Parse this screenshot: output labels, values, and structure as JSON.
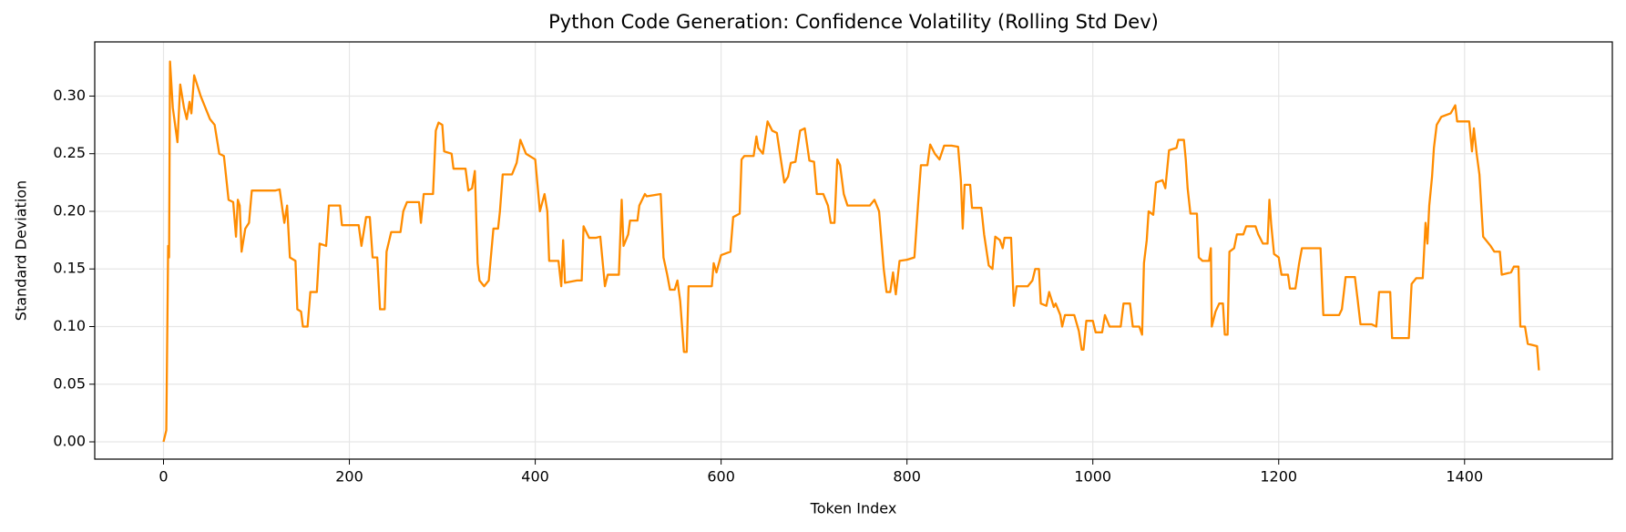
{
  "chart_data": {
    "type": "line",
    "title": "Python Code Generation: Confidence Volatility (Rolling Std Dev)",
    "x_label": "Token Index",
    "y_label": "Standard Deviation",
    "color": "#ff8c00",
    "grid": true,
    "xlim": [
      -74,
      1559
    ],
    "ylim": [
      -0.015,
      0.347
    ],
    "xticks": [
      0,
      200,
      400,
      600,
      800,
      1000,
      1200,
      1400
    ],
    "yticks": [
      {
        "value": 0,
        "label": "0.00"
      },
      0.05,
      {
        "value": 0.1,
        "label": "0.10"
      },
      0.15,
      {
        "value": 0.2,
        "label": "0.20"
      },
      0.25,
      {
        "value": 0.3,
        "label": "0.30"
      }
    ],
    "x": [
      0,
      3,
      5,
      6,
      7,
      10,
      15,
      18,
      22,
      25,
      28,
      30,
      33,
      40,
      50,
      55,
      60,
      65,
      70,
      75,
      78,
      80,
      82,
      84,
      88,
      92,
      95,
      120,
      125,
      130,
      133,
      136,
      142,
      144,
      148,
      150,
      155,
      158,
      165,
      168,
      175,
      178,
      190,
      192,
      210,
      213,
      218,
      222,
      225,
      230,
      233,
      238,
      240,
      245,
      255,
      258,
      262,
      275,
      277,
      280,
      290,
      293,
      296,
      300,
      302,
      310,
      312,
      325,
      328,
      332,
      335,
      338,
      340,
      345,
      350,
      355,
      360,
      362,
      365,
      375,
      380,
      384,
      390,
      400,
      405,
      410,
      413,
      415,
      425,
      428,
      430,
      432,
      445,
      450,
      452,
      458,
      465,
      470,
      475,
      478,
      490,
      493,
      495,
      500,
      502,
      510,
      512,
      518,
      520,
      535,
      538,
      542,
      545,
      550,
      553,
      556,
      558,
      560,
      563,
      565,
      590,
      592,
      595,
      600,
      610,
      613,
      620,
      622,
      625,
      635,
      638,
      640,
      645,
      650,
      655,
      660,
      668,
      672,
      675,
      680,
      685,
      690,
      695,
      700,
      703,
      710,
      715,
      718,
      722,
      725,
      728,
      732,
      736,
      750,
      760,
      765,
      770,
      775,
      778,
      782,
      785,
      788,
      792,
      800,
      808,
      812,
      815,
      822,
      825,
      830,
      835,
      840,
      848,
      855,
      858,
      860,
      862,
      868,
      870,
      880,
      883,
      888,
      892,
      895,
      900,
      903,
      905,
      912,
      915,
      918,
      930,
      935,
      938,
      942,
      944,
      950,
      953,
      958,
      960,
      965,
      967,
      970,
      980,
      985,
      988,
      990,
      993,
      1000,
      1003,
      1010,
      1013,
      1018,
      1030,
      1033,
      1040,
      1043,
      1050,
      1053,
      1055,
      1058,
      1060,
      1065,
      1068,
      1075,
      1078,
      1082,
      1090,
      1092,
      1098,
      1100,
      1102,
      1105,
      1112,
      1114,
      1118,
      1125,
      1127,
      1128,
      1132,
      1136,
      1140,
      1142,
      1145,
      1147,
      1152,
      1155,
      1162,
      1165,
      1175,
      1178,
      1183,
      1188,
      1190,
      1192,
      1195,
      1200,
      1203,
      1210,
      1212,
      1218,
      1222,
      1225,
      1240,
      1245,
      1248,
      1265,
      1268,
      1272,
      1282,
      1285,
      1288,
      1300,
      1305,
      1308,
      1320,
      1322,
      1340,
      1343,
      1348,
      1355,
      1358,
      1360,
      1362,
      1365,
      1367,
      1370,
      1375,
      1385,
      1390,
      1392,
      1405,
      1408,
      1410,
      1413,
      1416,
      1418,
      1420,
      1428,
      1432,
      1438,
      1440,
      1450,
      1453,
      1458,
      1460,
      1465,
      1468,
      1478,
      1480
    ],
    "values": [
      0,
      0.01,
      0.17,
      0.16,
      0.33,
      0.29,
      0.26,
      0.31,
      0.29,
      0.28,
      0.295,
      0.285,
      0.318,
      0.3,
      0.28,
      0.275,
      0.25,
      0.248,
      0.21,
      0.208,
      0.178,
      0.21,
      0.205,
      0.165,
      0.185,
      0.19,
      0.218,
      0.218,
      0.219,
      0.19,
      0.205,
      0.16,
      0.157,
      0.115,
      0.113,
      0.1,
      0.1,
      0.13,
      0.13,
      0.172,
      0.17,
      0.205,
      0.205,
      0.188,
      0.188,
      0.17,
      0.195,
      0.195,
      0.16,
      0.16,
      0.115,
      0.115,
      0.165,
      0.182,
      0.182,
      0.2,
      0.208,
      0.208,
      0.19,
      0.215,
      0.215,
      0.27,
      0.277,
      0.275,
      0.252,
      0.25,
      0.237,
      0.237,
      0.218,
      0.22,
      0.235,
      0.155,
      0.14,
      0.135,
      0.14,
      0.185,
      0.185,
      0.2,
      0.232,
      0.232,
      0.242,
      0.262,
      0.25,
      0.245,
      0.2,
      0.215,
      0.2,
      0.157,
      0.157,
      0.135,
      0.175,
      0.138,
      0.14,
      0.14,
      0.187,
      0.177,
      0.177,
      0.178,
      0.135,
      0.145,
      0.145,
      0.21,
      0.17,
      0.18,
      0.192,
      0.192,
      0.205,
      0.215,
      0.213,
      0.215,
      0.16,
      0.145,
      0.132,
      0.132,
      0.14,
      0.122,
      0.1,
      0.078,
      0.078,
      0.135,
      0.135,
      0.155,
      0.147,
      0.162,
      0.165,
      0.195,
      0.198,
      0.245,
      0.248,
      0.248,
      0.265,
      0.255,
      0.25,
      0.278,
      0.27,
      0.268,
      0.225,
      0.23,
      0.242,
      0.243,
      0.27,
      0.272,
      0.244,
      0.243,
      0.215,
      0.215,
      0.205,
      0.19,
      0.19,
      0.245,
      0.24,
      0.215,
      0.205,
      0.205,
      0.205,
      0.21,
      0.2,
      0.15,
      0.13,
      0.13,
      0.147,
      0.128,
      0.157,
      0.158,
      0.16,
      0.207,
      0.24,
      0.24,
      0.258,
      0.25,
      0.245,
      0.257,
      0.257,
      0.256,
      0.227,
      0.185,
      0.223,
      0.223,
      0.203,
      0.203,
      0.18,
      0.153,
      0.15,
      0.178,
      0.175,
      0.168,
      0.177,
      0.177,
      0.118,
      0.135,
      0.135,
      0.14,
      0.15,
      0.15,
      0.12,
      0.118,
      0.13,
      0.117,
      0.12,
      0.11,
      0.1,
      0.11,
      0.11,
      0.096,
      0.08,
      0.08,
      0.105,
      0.105,
      0.095,
      0.095,
      0.11,
      0.1,
      0.1,
      0.12,
      0.12,
      0.1,
      0.1,
      0.093,
      0.155,
      0.175,
      0.2,
      0.197,
      0.225,
      0.227,
      0.22,
      0.253,
      0.255,
      0.262,
      0.262,
      0.245,
      0.22,
      0.198,
      0.198,
      0.16,
      0.157,
      0.157,
      0.168,
      0.1,
      0.113,
      0.12,
      0.12,
      0.093,
      0.093,
      0.165,
      0.168,
      0.18,
      0.18,
      0.187,
      0.187,
      0.18,
      0.172,
      0.172,
      0.21,
      0.188,
      0.163,
      0.16,
      0.145,
      0.145,
      0.133,
      0.133,
      0.155,
      0.168,
      0.168,
      0.168,
      0.11,
      0.11,
      0.115,
      0.143,
      0.143,
      0.123,
      0.102,
      0.102,
      0.1,
      0.13,
      0.13,
      0.09,
      0.09,
      0.137,
      0.142,
      0.142,
      0.19,
      0.172,
      0.205,
      0.23,
      0.255,
      0.275,
      0.282,
      0.285,
      0.292,
      0.278,
      0.278,
      0.252,
      0.272,
      0.25,
      0.232,
      0.205,
      0.178,
      0.17,
      0.165,
      0.165,
      0.145,
      0.147,
      0.152,
      0.152,
      0.1,
      0.1,
      0.085,
      0.083,
      0.062
    ]
  }
}
